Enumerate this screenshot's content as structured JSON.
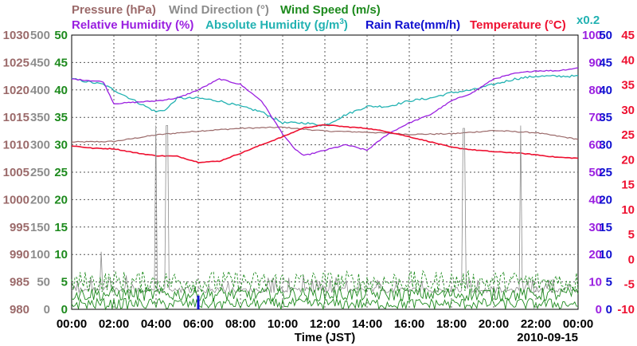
{
  "colors": {
    "pressure": "#9b6a6a",
    "wind_direction": "#8c8c8c",
    "wind_speed": "#1d8a1d",
    "relative_humidity": "#9a1fe0",
    "absolute_humidity": "#22b2b2",
    "rain_rate": "#1010d0",
    "temperature": "#ee1030",
    "axis_text": "#000000",
    "grid": "#555555"
  },
  "chart_data": {
    "type": "line",
    "legend": {
      "pressure": "Pressure (hPa)",
      "wind_direction": "Wind Direction (°)",
      "wind_speed": "Wind Speed (m/s)",
      "relative_humidity": "Relative Humidity (%)",
      "absolute_humidity_prefix": "Absolute Humidity (g/m",
      "absolute_humidity_sup": "3",
      "absolute_humidity_suffix": ")",
      "rain_rate": "Rain Rate(mm/h)",
      "temperature": "Temperature (°C)",
      "scale_note": "x0.2"
    },
    "xlabel": "Time (JST)",
    "date": "2010-09-15",
    "x_ticks": [
      "00:00",
      "02:00",
      "04:00",
      "06:00",
      "08:00",
      "10:00",
      "12:00",
      "14:00",
      "16:00",
      "18:00",
      "20:00",
      "22:00",
      "00:00"
    ],
    "x_range_hours": [
      0,
      24
    ],
    "grid": true,
    "axes": {
      "pressure_ticks": [
        "1030",
        "1025",
        "1020",
        "1015",
        "1010",
        "1005",
        "1000",
        "995",
        "990",
        "985",
        "980"
      ],
      "pressure_range": [
        980,
        1030
      ],
      "wind_direction_ticks": [
        "500",
        "450",
        "400",
        "350",
        "300",
        "250",
        "200",
        "150",
        "100",
        "50",
        "0"
      ],
      "wind_direction_range": [
        0,
        500
      ],
      "wind_speed_ticks": [
        "50",
        "45",
        "40",
        "35",
        "30",
        "25",
        "20",
        "15",
        "10",
        "5",
        "0"
      ],
      "wind_speed_range": [
        0,
        50
      ],
      "humidity_ticks": [
        "100",
        "90",
        "80",
        "70",
        "60",
        "50",
        "40",
        "30",
        "20",
        "10",
        "0"
      ],
      "humidity_range": [
        0,
        100
      ],
      "rain_ticks": [
        "50",
        "45",
        "40",
        "35",
        "30",
        "25",
        "20",
        "15",
        "10",
        "5",
        "0"
      ],
      "rain_range": [
        0,
        50
      ],
      "temperature_ticks": [
        "45",
        "40",
        "35",
        "30",
        "25",
        "20",
        "15",
        "10",
        "5",
        "0",
        "-5",
        "-10"
      ],
      "temperature_range": [
        -10,
        45
      ]
    },
    "series": [
      {
        "name": "Pressure (hPa)",
        "key": "pressure",
        "x": [
          0,
          2,
          4,
          6,
          8,
          10,
          12,
          14,
          16,
          18,
          20,
          22,
          24
        ],
        "values": [
          1010.5,
          1010.6,
          1011.8,
          1012.5,
          1013.0,
          1013.2,
          1012.5,
          1012.3,
          1011.9,
          1012.0,
          1012.6,
          1012.2,
          1011.0
        ]
      },
      {
        "name": "Relative Humidity (%)",
        "key": "relative_humidity",
        "x": [
          0,
          1.5,
          2,
          4,
          5,
          6,
          7,
          8,
          9,
          10,
          10.5,
          11,
          12,
          13,
          14,
          15,
          16,
          17,
          18,
          19,
          20,
          21,
          22,
          23,
          24
        ],
        "values": [
          84,
          83,
          75,
          76,
          77,
          80,
          84,
          82,
          76,
          64,
          59,
          56,
          58,
          60,
          58,
          64,
          68,
          71,
          76,
          79,
          84,
          86,
          87,
          87,
          88
        ]
      },
      {
        "name": "Absolute Humidity (g/m3)",
        "key": "absolute_humidity",
        "x": [
          0,
          1.5,
          2,
          3,
          4,
          4.5,
          5,
          6,
          7,
          8,
          9,
          10,
          11,
          12,
          13,
          14,
          15,
          16,
          17,
          18,
          19,
          20,
          21,
          22,
          23,
          24
        ],
        "values": [
          84,
          82,
          80,
          76,
          72,
          73,
          77,
          77,
          76,
          74,
          72,
          68,
          68,
          67,
          71,
          74,
          74,
          76,
          77,
          79,
          80,
          82,
          84,
          85,
          85,
          85
        ]
      },
      {
        "name": "Temperature (°C)",
        "key": "temperature",
        "x": [
          0,
          1,
          2,
          3,
          4,
          5,
          6,
          7,
          8,
          9,
          10,
          11,
          12,
          13,
          14,
          15,
          16,
          17,
          18,
          19,
          20,
          21,
          22,
          23,
          24
        ],
        "values": [
          22.8,
          22.3,
          22.2,
          21.4,
          20.8,
          20.7,
          19.5,
          19.7,
          21.3,
          23.0,
          24.6,
          26.4,
          27.0,
          26.6,
          26.3,
          25.6,
          24.6,
          23.6,
          22.5,
          22.0,
          21.6,
          21.4,
          21.0,
          20.5,
          20.3
        ]
      },
      {
        "name": "Wind Direction (°)",
        "key": "wind_direction",
        "baseline": [
          30,
          40
        ],
        "spikes": [
          {
            "x": 1.4,
            "value": 105
          },
          {
            "x": 4.0,
            "value": 335
          },
          {
            "x": 4.5,
            "value": 335
          },
          {
            "x": 18.6,
            "value": 330
          },
          {
            "x": 21.3,
            "value": 335
          }
        ]
      },
      {
        "name": "Wind Speed (m/s)",
        "key": "wind_speed",
        "gust_range": [
          3,
          7
        ],
        "mean_range": [
          1.5,
          4
        ],
        "min_range": [
          0,
          2
        ]
      },
      {
        "name": "Rain Rate(mm/h)",
        "key": "rain_rate",
        "events": [
          {
            "x": 6.0,
            "value": 2.5
          }
        ]
      }
    ]
  }
}
